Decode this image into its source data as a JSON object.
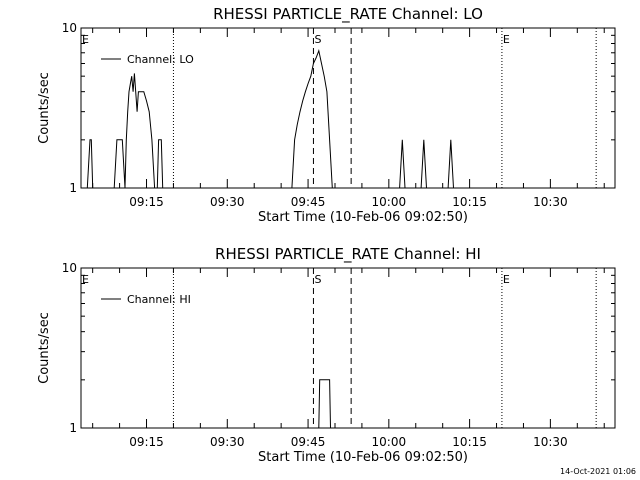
{
  "chart_data": [
    {
      "type": "line",
      "title": "RHESSI PARTICLE_RATE Channel: LO",
      "xlabel": "Start Time (10-Feb-06 09:02:50)",
      "ylabel": "Counts/sec",
      "xlim": [
        "09:02:50",
        "10:42:00"
      ],
      "ylim": [
        1,
        10
      ],
      "yscale": "log",
      "xticks": [
        "09:15",
        "09:30",
        "09:45",
        "10:00",
        "10:15",
        "10:30"
      ],
      "yticks": [
        "1",
        "10"
      ],
      "legend": "top-left",
      "series": [
        {
          "name": "Channel: LO",
          "x": [
            "09:04:00",
            "09:04:30",
            "09:04:45",
            "09:05:00",
            "09:09:00",
            "09:09:30",
            "09:10:00",
            "09:10:30",
            "09:11:00",
            "09:11:15",
            "09:11:30",
            "09:11:45",
            "09:12:00",
            "09:12:15",
            "09:12:30",
            "09:12:45",
            "09:13:00",
            "09:13:15",
            "09:13:30",
            "09:13:45",
            "09:14:00",
            "09:14:30",
            "09:15:00",
            "09:15:30",
            "09:16:00",
            "09:16:30",
            "09:17:00",
            "09:17:15",
            "09:17:30",
            "09:17:45",
            "09:18:00",
            "09:18:30",
            "09:19:00",
            "09:42:00",
            "09:42:30",
            "09:43:00",
            "09:43:30",
            "09:44:00",
            "09:44:30",
            "09:45:00",
            "09:45:30",
            "09:46:00",
            "09:46:30",
            "09:47:00",
            "09:47:30",
            "09:48:00",
            "09:48:30",
            "09:49:00",
            "09:49:30",
            "09:50:00",
            "10:02:00",
            "10:02:30",
            "10:03:00",
            "10:06:00",
            "10:06:30",
            "10:07:00",
            "10:11:00",
            "10:11:30",
            "10:12:00"
          ],
          "y": [
            1,
            2,
            2,
            1,
            1,
            2,
            2,
            2,
            1,
            2,
            3,
            4,
            4.5,
            5,
            4,
            5.2,
            4,
            3,
            4,
            4,
            4,
            4,
            3.5,
            3,
            2,
            1,
            1,
            2,
            2,
            2,
            1,
            1,
            1,
            1,
            2,
            2.5,
            3,
            3.5,
            4,
            4.5,
            5,
            6,
            6.5,
            7.2,
            6,
            5,
            4,
            2,
            1,
            1,
            1,
            2,
            1,
            1,
            2,
            1,
            1,
            2,
            1
          ],
          "color": "#000000"
        }
      ],
      "markers": [
        {
          "label": "E",
          "time": "09:03:00",
          "style": "none"
        },
        {
          "label": "",
          "time": "09:20:00",
          "style": "dotted"
        },
        {
          "label": "S",
          "time": "09:46:00",
          "style": "dashed"
        },
        {
          "label": "",
          "time": "09:53:00",
          "style": "dashed"
        },
        {
          "label": "E",
          "time": "10:21:00",
          "style": "dotted"
        },
        {
          "label": "",
          "time": "10:38:30",
          "style": "dotted"
        }
      ]
    },
    {
      "type": "line",
      "title": "RHESSI PARTICLE_RATE Channel: HI",
      "xlabel": "Start Time (10-Feb-06 09:02:50)",
      "ylabel": "Counts/sec",
      "xlim": [
        "09:02:50",
        "10:42:00"
      ],
      "ylim": [
        1,
        10
      ],
      "yscale": "log",
      "xticks": [
        "09:15",
        "09:30",
        "09:45",
        "10:00",
        "10:15",
        "10:30"
      ],
      "yticks": [
        "1",
        "10"
      ],
      "legend": "top-left",
      "series": [
        {
          "name": "Channel: HI",
          "x": [
            "09:45:00",
            "09:47:00",
            "09:47:10",
            "09:49:00",
            "09:49:10",
            "09:52:00"
          ],
          "y": [
            1,
            1,
            2,
            2,
            1,
            1
          ],
          "color": "#000000"
        }
      ],
      "markers": [
        {
          "label": "E",
          "time": "09:03:00",
          "style": "none"
        },
        {
          "label": "",
          "time": "09:20:00",
          "style": "dotted"
        },
        {
          "label": "S",
          "time": "09:46:00",
          "style": "dashed"
        },
        {
          "label": "",
          "time": "09:53:00",
          "style": "dashed"
        },
        {
          "label": "E",
          "time": "10:21:00",
          "style": "dotted"
        },
        {
          "label": "",
          "time": "10:38:30",
          "style": "dotted"
        }
      ]
    }
  ],
  "footer": {
    "timestamp": "14-Oct-2021 01:06"
  }
}
